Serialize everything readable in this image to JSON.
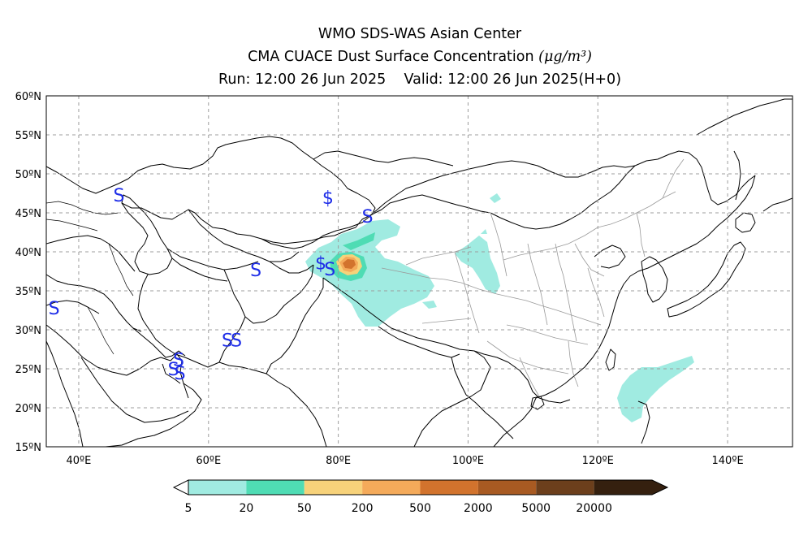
{
  "title": {
    "line1": "WMO SDS-WAS Asian Center",
    "line2": "CMA CUACE Dust Surface Concentration",
    "unit": "(μg/m³)",
    "run": "Run: 12:00 26 Jun 2025",
    "valid": "Valid: 12:00 26 Jun 2025(H+0)"
  },
  "map": {
    "lon_labels": [
      "40ºE",
      "60ºE",
      "80ºE",
      "100ºE",
      "120ºE",
      "140ºE"
    ],
    "lat_labels": [
      "60ºN",
      "55ºN",
      "50ºN",
      "45ºN",
      "40ºN",
      "35ºN",
      "30ºN",
      "25ºN",
      "20ºN",
      "15ºN"
    ],
    "station_symbols": [
      {
        "symbol": "S",
        "lon": 46.2,
        "lat": 47.3
      },
      {
        "symbol": "$",
        "lon": 78.4,
        "lat": 47.0
      },
      {
        "symbol": "S",
        "lon": 84.5,
        "lat": 44.6
      },
      {
        "symbol": "$",
        "lon": 77.3,
        "lat": 38.6
      },
      {
        "symbol": "S",
        "lon": 78.7,
        "lat": 37.8
      },
      {
        "symbol": "S",
        "lon": 67.3,
        "lat": 37.7
      },
      {
        "symbol": "S",
        "lon": 36.2,
        "lat": 32.8
      },
      {
        "symbol": "S",
        "lon": 62.9,
        "lat": 28.7
      },
      {
        "symbol": "S",
        "lon": 64.3,
        "lat": 28.7
      },
      {
        "symbol": "S",
        "lon": 55.4,
        "lat": 26.2
      },
      {
        "symbol": "S",
        "lon": 54.6,
        "lat": 25.0
      },
      {
        "symbol": "S",
        "lon": 55.6,
        "lat": 24.5
      }
    ]
  },
  "colorbar": {
    "colors": [
      "#a0ebe1",
      "#4fdcb4",
      "#f7d27a",
      "#f4aa5a",
      "#d2732d",
      "#a85a22",
      "#6c3f1c",
      "#35200f"
    ],
    "labels": [
      "5",
      "20",
      "50",
      "200",
      "500",
      "2000",
      "5000",
      "20000"
    ]
  }
}
